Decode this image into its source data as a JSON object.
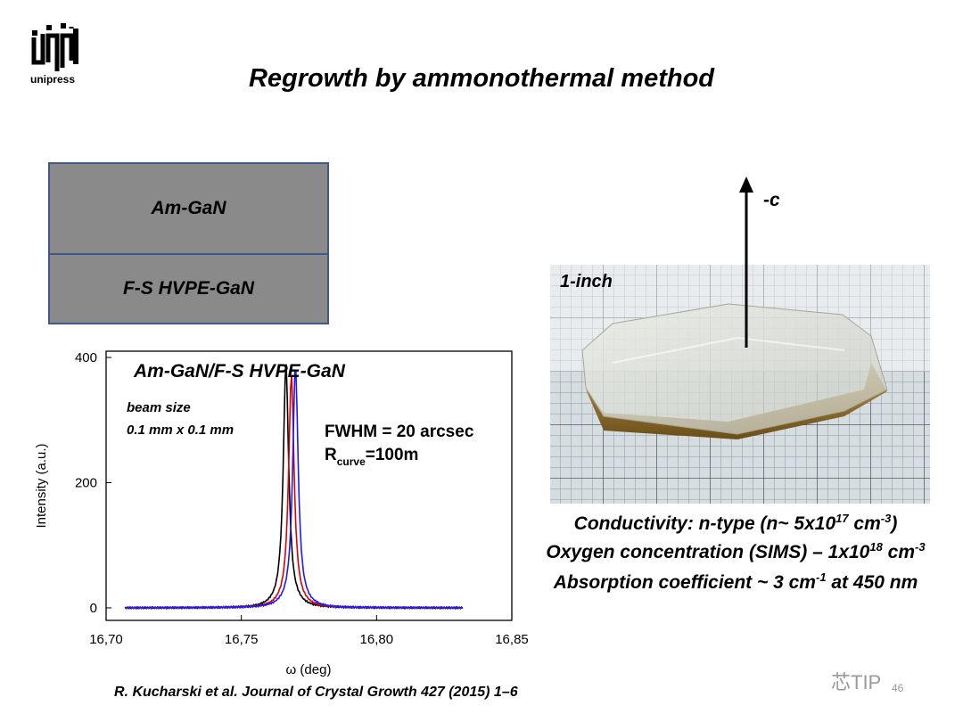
{
  "header": {
    "logo_text": "unipress",
    "title": "Regrowth by ammonothermal method"
  },
  "layers": {
    "top": "Am-GaN",
    "bottom": "F-S HVPE-GaN"
  },
  "chart_data": {
    "type": "line",
    "title": "Am-GaN/F-S HVPE-GaN",
    "xlabel": "ω (deg)",
    "ylabel": "Intensity (a.u.)",
    "xlim": [
      16.7,
      16.85
    ],
    "ylim": [
      -20,
      410
    ],
    "x_ticks": [
      "16,70",
      "16,75",
      "16,80",
      "16,85"
    ],
    "y_ticks": [
      "0",
      "200",
      "400"
    ],
    "annotations": {
      "beam_line1": "beam size",
      "beam_line2": "0.1 mm x 0.1 mm",
      "fwhm": "FWHM = 20 arcsec",
      "rcurve_prefix": "R",
      "rcurve_sub": "curve",
      "rcurve_suffix": "=100m"
    },
    "series": [
      {
        "color": "#000000",
        "center": 16.7665,
        "peak": 385
      },
      {
        "color": "#e00000",
        "center": 16.7685,
        "peak": 368
      },
      {
        "color": "#1a1aff",
        "center": 16.77,
        "peak": 382
      }
    ]
  },
  "photo": {
    "size_label": "1-inch",
    "axis_label": "-c"
  },
  "properties": {
    "conductivity": "Conductivity: n-type (n~ 5x10",
    "conductivity_exp": "17",
    "conductivity_unit": " cm",
    "conductivity_unit_exp": "-3",
    "conductivity_end": ")",
    "oxygen": "Oxygen concentration (SIMS) – 1x10",
    "oxygen_exp": "18",
    "oxygen_unit": " cm",
    "oxygen_unit_exp": "-3",
    "absorption": "Absorption coefficient ~ 3 cm",
    "absorption_exp": "-1",
    "absorption_end": " at 450 nm"
  },
  "citation": "R. Kucharski et al. Journal of Crystal Growth 427 (2015) 1–6",
  "watermark": "芯TIP",
  "page_number": "46",
  "colors": {
    "layer_fill": "#8a8a8a",
    "layer_border": "#3f5a86"
  }
}
